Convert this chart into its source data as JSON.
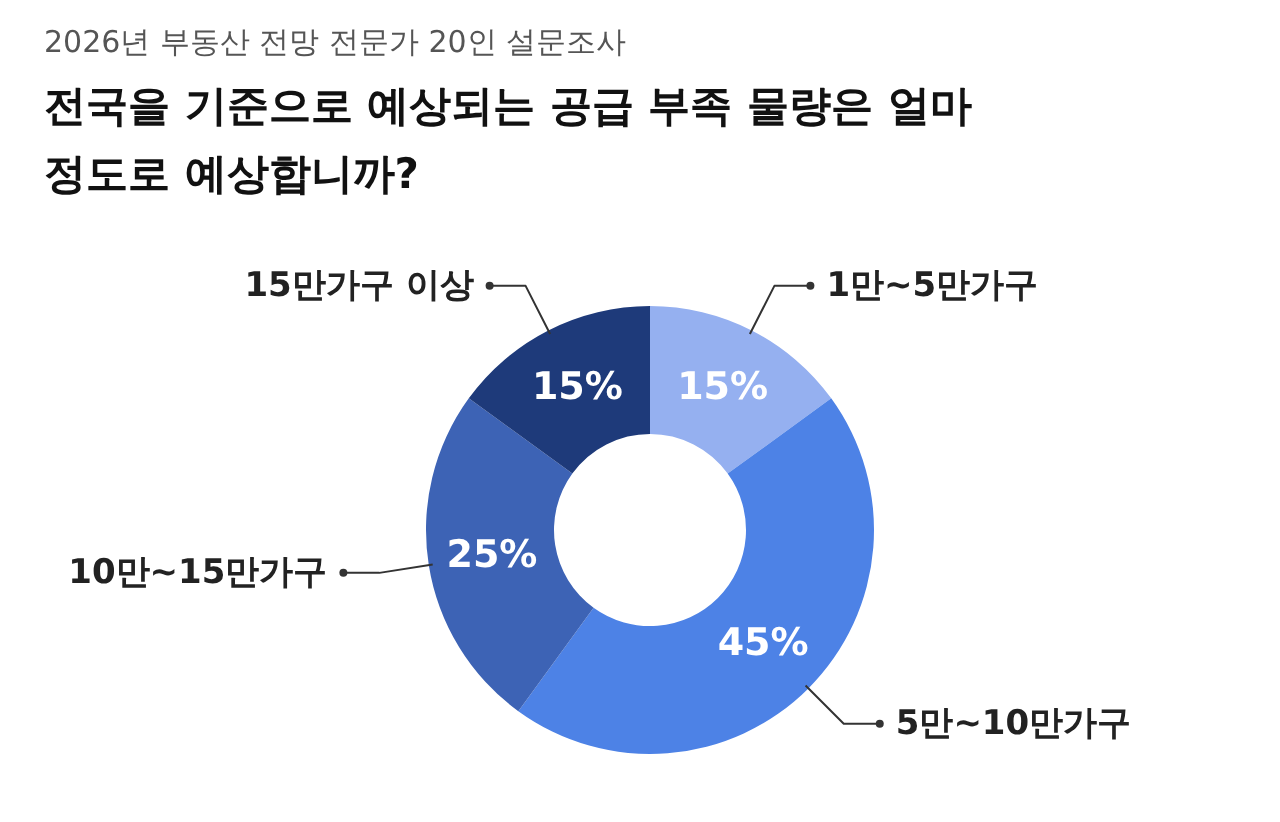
{
  "chart_data": {
    "type": "donut",
    "subtitle": "2026년 부동산 전망 전문가 20인 설문조사",
    "title": "전국을 기준으로 예상되는 공급 부족 물량은 얼마정도로 예상합니까?",
    "categories": [
      "1만~5만가구",
      "5만~10만가구",
      "10만~15만가구",
      "15만가구 이상"
    ],
    "values": [
      15,
      45,
      25,
      15
    ],
    "value_labels": [
      "15%",
      "45%",
      "25%",
      "15%"
    ],
    "colors": [
      "#95b0f0",
      "#4d82e6",
      "#3d63b5",
      "#1e3a7a"
    ],
    "legend": false
  }
}
